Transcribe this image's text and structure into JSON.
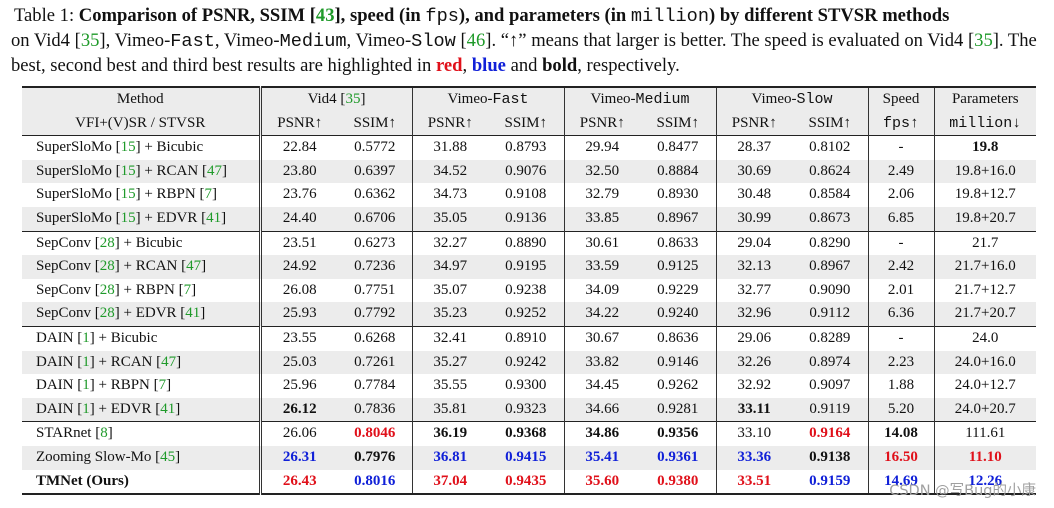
{
  "caption": {
    "lead": "Table 1: ",
    "t1": "Comparison of PSNR, SSIM [",
    "ref43": "43",
    "t2": "], speed (in ",
    "fps": "fps",
    "t3": "), and parameters (in ",
    "million": "million",
    "t4": ") by different STVSR methods",
    "l2a": " on Vid4 [",
    "ref35a": "35",
    "l2b": "], Vimeo-",
    "fast": "Fast",
    "l2c": ", Vimeo-",
    "medium": "Medium",
    "l2d": ", Vimeo-",
    "slow": "Slow",
    "l2e": " [",
    "ref46": "46",
    "l2f": "]. “↑” means that larger is better. The speed is evaluated on Vid4 [",
    "ref35b": "35",
    "l3a": "]. The best, second best and third best results are highlighted in ",
    "red": "red",
    "l3b": ", ",
    "blue": "blue",
    "l3c": " and ",
    "bold": "bold",
    "l3d": ", respectively."
  },
  "header": {
    "method": "Method",
    "method_sub": "VFI+(V)SR / STVSR",
    "vid4": "Vid4 [",
    "vid4_ref": "35",
    "vid4_close": "]",
    "vimeo_prefix": "Vimeo-",
    "fast": "Fast",
    "medium": "Medium",
    "slow": "Slow",
    "speed": "Speed",
    "speed_unit": "fps↑",
    "params": "Parameters",
    "params_unit": "million↓",
    "psnr": "PSNR↑",
    "ssim": "SSIM↑"
  },
  "rows": [
    {
      "base": "SuperSloMo [",
      "bref": "15",
      "mid": "] + Bicubic",
      "sref": "",
      "tail": "",
      "v": [
        "22.84",
        "0.5772",
        "31.88",
        "0.8793",
        "29.94",
        "0.8477",
        "28.37",
        "0.8102",
        "-",
        "19.8"
      ],
      "s": [
        "",
        "",
        "",
        "",
        "",
        "",
        "",
        "",
        "",
        "b"
      ]
    },
    {
      "base": "SuperSloMo [",
      "bref": "15",
      "mid": "] + RCAN [",
      "sref": "47",
      "tail": "]",
      "v": [
        "23.80",
        "0.6397",
        "34.52",
        "0.9076",
        "32.50",
        "0.8884",
        "30.69",
        "0.8624",
        "2.49",
        "19.8+16.0"
      ],
      "s": [
        "",
        "",
        "",
        "",
        "",
        "",
        "",
        "",
        "",
        ""
      ]
    },
    {
      "base": "SuperSloMo [",
      "bref": "15",
      "mid": "] + RBPN [",
      "sref": "7",
      "tail": "]",
      "v": [
        "23.76",
        "0.6362",
        "34.73",
        "0.9108",
        "32.79",
        "0.8930",
        "30.48",
        "0.8584",
        "2.06",
        "19.8+12.7"
      ],
      "s": [
        "",
        "",
        "",
        "",
        "",
        "",
        "",
        "",
        "",
        ""
      ]
    },
    {
      "base": "SuperSloMo [",
      "bref": "15",
      "mid": "] + EDVR [",
      "sref": "41",
      "tail": "]",
      "v": [
        "24.40",
        "0.6706",
        "35.05",
        "0.9136",
        "33.85",
        "0.8967",
        "30.99",
        "0.8673",
        "6.85",
        "19.8+20.7"
      ],
      "s": [
        "",
        "",
        "",
        "",
        "",
        "",
        "",
        "",
        "",
        ""
      ]
    },
    {
      "base": "SepConv [",
      "bref": "28",
      "mid": "] + Bicubic",
      "sref": "",
      "tail": "",
      "v": [
        "23.51",
        "0.6273",
        "32.27",
        "0.8890",
        "30.61",
        "0.8633",
        "29.04",
        "0.8290",
        "-",
        "21.7"
      ],
      "s": [
        "",
        "",
        "",
        "",
        "",
        "",
        "",
        "",
        "",
        ""
      ]
    },
    {
      "base": "SepConv [",
      "bref": "28",
      "mid": "] + RCAN [",
      "sref": "47",
      "tail": "]",
      "v": [
        "24.92",
        "0.7236",
        "34.97",
        "0.9195",
        "33.59",
        "0.9125",
        "32.13",
        "0.8967",
        "2.42",
        "21.7+16.0"
      ],
      "s": [
        "",
        "",
        "",
        "",
        "",
        "",
        "",
        "",
        "",
        ""
      ]
    },
    {
      "base": "SepConv [",
      "bref": "28",
      "mid": "] + RBPN [",
      "sref": "7",
      "tail": "]",
      "v": [
        "26.08",
        "0.7751",
        "35.07",
        "0.9238",
        "34.09",
        "0.9229",
        "32.77",
        "0.9090",
        "2.01",
        "21.7+12.7"
      ],
      "s": [
        "",
        "",
        "",
        "",
        "",
        "",
        "",
        "",
        "",
        ""
      ]
    },
    {
      "base": "SepConv [",
      "bref": "28",
      "mid": "] + EDVR [",
      "sref": "41",
      "tail": "]",
      "v": [
        "25.93",
        "0.7792",
        "35.23",
        "0.9252",
        "34.22",
        "0.9240",
        "32.96",
        "0.9112",
        "6.36",
        "21.7+20.7"
      ],
      "s": [
        "",
        "",
        "",
        "",
        "",
        "",
        "",
        "",
        "",
        ""
      ]
    },
    {
      "base": "DAIN [",
      "bref": "1",
      "mid": "] + Bicubic",
      "sref": "",
      "tail": "",
      "v": [
        "23.55",
        "0.6268",
        "32.41",
        "0.8910",
        "30.67",
        "0.8636",
        "29.06",
        "0.8289",
        "-",
        "24.0"
      ],
      "s": [
        "",
        "",
        "",
        "",
        "",
        "",
        "",
        "",
        "",
        ""
      ]
    },
    {
      "base": "DAIN [",
      "bref": "1",
      "mid": "] + RCAN [",
      "sref": "47",
      "tail": "]",
      "v": [
        "25.03",
        "0.7261",
        "35.27",
        "0.9242",
        "33.82",
        "0.9146",
        "32.26",
        "0.8974",
        "2.23",
        "24.0+16.0"
      ],
      "s": [
        "",
        "",
        "",
        "",
        "",
        "",
        "",
        "",
        "",
        ""
      ]
    },
    {
      "base": "DAIN [",
      "bref": "1",
      "mid": "] + RBPN [",
      "sref": "7",
      "tail": "]",
      "v": [
        "25.96",
        "0.7784",
        "35.55",
        "0.9300",
        "34.45",
        "0.9262",
        "32.92",
        "0.9097",
        "1.88",
        "24.0+12.7"
      ],
      "s": [
        "",
        "",
        "",
        "",
        "",
        "",
        "",
        "",
        "",
        ""
      ]
    },
    {
      "base": "DAIN [",
      "bref": "1",
      "mid": "] + EDVR [",
      "sref": "41",
      "tail": "]",
      "v": [
        "26.12",
        "0.7836",
        "35.81",
        "0.9323",
        "34.66",
        "0.9281",
        "33.11",
        "0.9119",
        "5.20",
        "24.0+20.7"
      ],
      "s": [
        "b",
        "",
        "",
        "",
        "",
        "",
        "b",
        "",
        "",
        ""
      ]
    },
    {
      "base": "STARnet [",
      "bref": "8",
      "mid": "]",
      "sref": "",
      "tail": "",
      "v": [
        "26.06",
        "0.8046",
        "36.19",
        "0.9368",
        "34.86",
        "0.9356",
        "33.10",
        "0.9164",
        "14.08",
        "111.61"
      ],
      "s": [
        "",
        "r",
        "b",
        "b",
        "b",
        "b",
        "",
        "r",
        "b",
        ""
      ]
    },
    {
      "base": "Zooming Slow-Mo [",
      "bref": "45",
      "mid": "]",
      "sref": "",
      "tail": "",
      "v": [
        "26.31",
        "0.7976",
        "36.81",
        "0.9415",
        "35.41",
        "0.9361",
        "33.36",
        "0.9138",
        "16.50",
        "11.10"
      ],
      "s": [
        "u",
        "b",
        "u",
        "u",
        "u",
        "u",
        "u",
        "b",
        "r",
        "r"
      ]
    },
    {
      "base": "TMNet (Ours)",
      "bref": "",
      "mid": "",
      "sref": "",
      "tail": "",
      "bold": true,
      "v": [
        "26.43",
        "0.8016",
        "37.04",
        "0.9435",
        "35.60",
        "0.9380",
        "33.51",
        "0.9159",
        "14.69",
        "12.26"
      ],
      "s": [
        "r",
        "u",
        "r",
        "r",
        "r",
        "r",
        "r",
        "u",
        "u",
        "u"
      ]
    }
  ],
  "watermark": "CSDN @写Bug的小康"
}
